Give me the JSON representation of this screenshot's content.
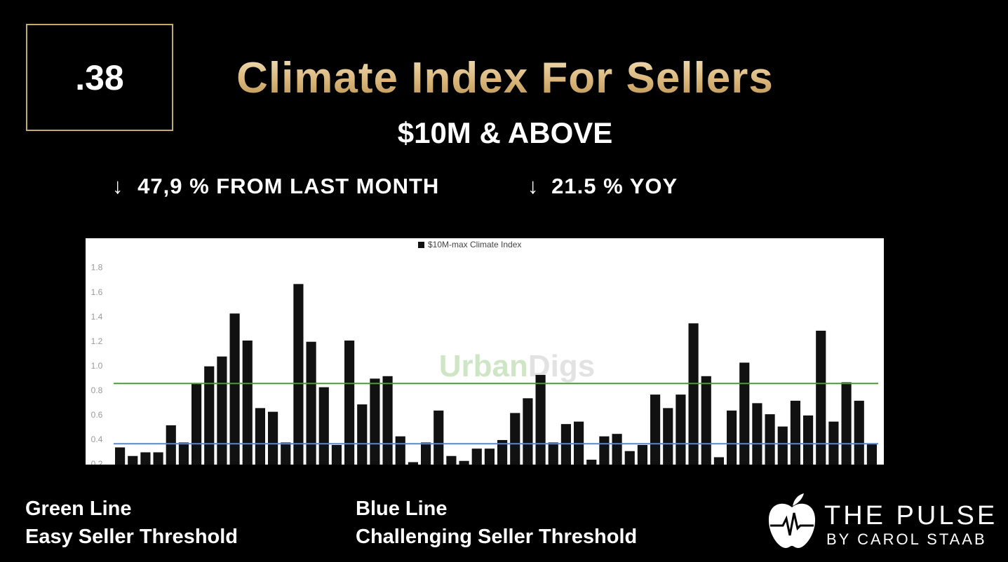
{
  "badge": ".38",
  "title": "Climate Index For Sellers",
  "subtitle": "$10M & ABOVE",
  "changes": [
    "47,9 % FROM LAST MONTH",
    "21.5 % YOY"
  ],
  "notes": [
    {
      "heading": "Green Line",
      "text": "Easy Seller Threshold"
    },
    {
      "heading": "Blue Line",
      "text": "Challenging Seller Threshold"
    }
  ],
  "brand": {
    "name": "THE PULSE",
    "byline": "BY CAROL STAAB"
  },
  "chart_data": {
    "type": "bar",
    "watermark": [
      "Urban",
      "Digs"
    ],
    "legend": "top",
    "categories": [
      null,
      null,
      null,
      null,
      null,
      null,
      null,
      null,
      null,
      null,
      null,
      null,
      null,
      null,
      null,
      null,
      null,
      null,
      null,
      null,
      null,
      null,
      null,
      null,
      null,
      null,
      null,
      null,
      null,
      null,
      null,
      null,
      null,
      null,
      null,
      null,
      null,
      null,
      null,
      null,
      null,
      null,
      null,
      null,
      null,
      null,
      null,
      null,
      null,
      null,
      null,
      null,
      null,
      null,
      null,
      null,
      null,
      null,
      null,
      null
    ],
    "series": [
      {
        "name": "$10M-max Climate Index",
        "color": "#111111",
        "values": [
          0.34,
          0.27,
          0.3,
          0.3,
          0.52,
          0.38,
          0.86,
          1.0,
          1.08,
          1.43,
          1.21,
          0.66,
          0.63,
          0.38,
          1.67,
          1.2,
          0.83,
          0.36,
          1.21,
          0.69,
          0.9,
          0.92,
          0.43,
          0.22,
          0.38,
          0.64,
          0.27,
          0.23,
          0.33,
          0.33,
          0.4,
          0.62,
          0.74,
          0.93,
          0.38,
          0.53,
          0.55,
          0.24,
          0.43,
          0.45,
          0.31,
          0.36,
          0.77,
          0.66,
          0.77,
          1.35,
          0.92,
          0.26,
          0.64,
          1.03,
          0.7,
          0.61,
          0.51,
          0.72,
          0.6,
          1.29,
          0.55,
          0.87,
          0.72,
          0.37
        ]
      }
    ],
    "thresholds": [
      {
        "value": 0.86,
        "color": "#4a9a3a"
      },
      {
        "value": 0.37,
        "color": "#5b86d6"
      }
    ],
    "ylim": [
      0.2,
      1.9
    ],
    "yticks": [
      0.2,
      0.4,
      0.6,
      0.8,
      {
        "value": 1,
        "label": "1.0"
      },
      1.2,
      1.4,
      1.6,
      1.8
    ]
  }
}
